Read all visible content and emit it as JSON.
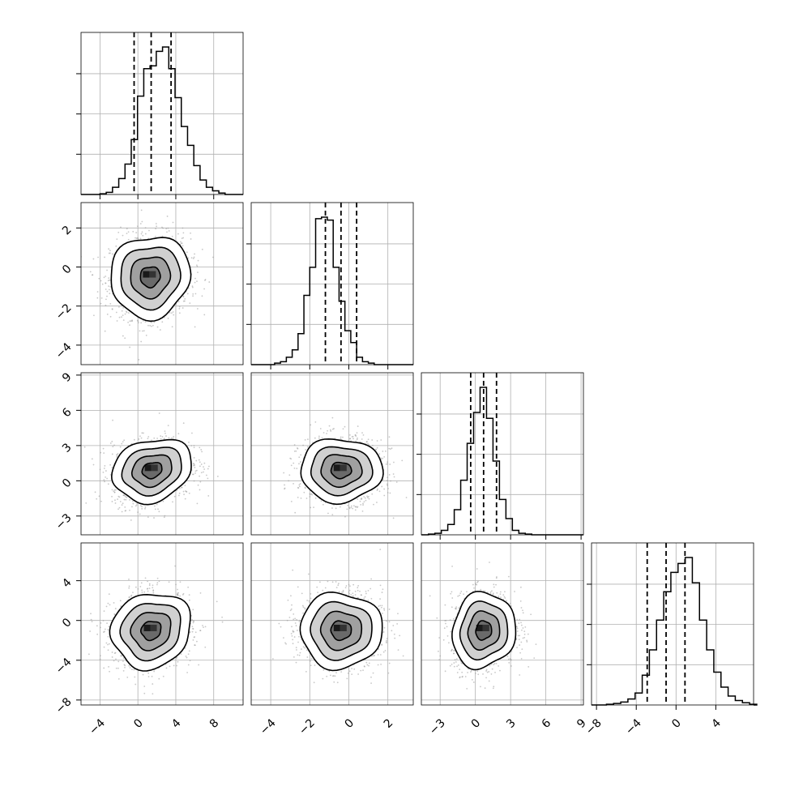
{
  "chart_data": {
    "type": "corner",
    "description_of_panels": "lower-triangle 2D density panels and diagonal 1D histograms with dashed quantile lines",
    "params": [
      {
        "ticks": [
          -4,
          0,
          4,
          8
        ],
        "tick_labels": [
          "−4",
          "0",
          "4",
          "8"
        ],
        "range": [
          -6,
          11.1
        ],
        "quantiles": [
          -0.4,
          1.4,
          3.5
        ],
        "hist": {
          "edges_start": -4.0,
          "bin_width": 0.66,
          "counts": [
            0.5,
            1.5,
            5,
            11,
            21,
            38,
            68,
            87,
            89,
            99,
            102,
            87,
            67,
            47,
            34,
            20,
            10,
            5,
            2.5,
            1
          ]
        }
      },
      {
        "ticks": [
          -4,
          -2,
          0,
          2
        ],
        "tick_labels": [
          "−4",
          "−2",
          "0",
          "2"
        ],
        "range": [
          -5,
          3.3
        ],
        "quantiles": [
          -1.2,
          -0.4,
          0.4
        ],
        "hist": {
          "edges_start": -3.8,
          "bin_width": 0.3,
          "counts": [
            1,
            2,
            5,
            10,
            21,
            47,
            66,
            99,
            100,
            98,
            66,
            43,
            23,
            15,
            5,
            2,
            1
          ]
        }
      },
      {
        "ticks": [
          -3,
          0,
          3,
          6,
          9
        ],
        "tick_labels": [
          "−3",
          "0",
          "3",
          "6",
          "9"
        ],
        "range": [
          -4.6,
          9.2
        ],
        "quantiles": [
          -0.4,
          0.7,
          1.8
        ],
        "hist": {
          "edges_start": -4.0,
          "bin_width": 0.55,
          "counts": [
            0.5,
            1,
            3,
            7,
            17,
            37,
            62,
            83,
            100,
            79,
            50,
            24,
            11,
            3,
            1,
            0.5
          ]
        }
      },
      {
        "ticks": [
          -8,
          -4,
          0,
          4
        ],
        "tick_labels": [
          "−8",
          "−4",
          "0",
          "4"
        ],
        "range": [
          -8.5,
          7.8
        ],
        "quantiles": [
          -2.9,
          -1.0,
          0.9
        ],
        "hist": {
          "edges_start": -7.0,
          "bin_width": 0.72,
          "counts": [
            0.5,
            1,
            2,
            4,
            8,
            20,
            37,
            57,
            76,
            89,
            95,
            99,
            82,
            57,
            37,
            22,
            12,
            6,
            3,
            1.5,
            0.5
          ]
        }
      }
    ],
    "pairs": [
      {
        "row": 1,
        "col": 0,
        "center": [
          1.3,
          -0.5
        ],
        "sd": [
          2.1,
          1.05
        ],
        "rho": 0.05
      },
      {
        "row": 2,
        "col": 0,
        "center": [
          1.5,
          0.9
        ],
        "sd": [
          2.1,
          1.35
        ],
        "rho": 0.18
      },
      {
        "row": 2,
        "col": 1,
        "center": [
          -0.4,
          0.9
        ],
        "sd": [
          1.05,
          1.35
        ],
        "rho": 0.0
      },
      {
        "row": 3,
        "col": 0,
        "center": [
          1.4,
          -1.0
        ],
        "sd": [
          2.1,
          1.9
        ],
        "rho": 0.1
      },
      {
        "row": 3,
        "col": 1,
        "center": [
          -0.4,
          -1.0
        ],
        "sd": [
          1.05,
          1.9
        ],
        "rho": 0.0
      },
      {
        "row": 3,
        "col": 2,
        "center": [
          0.7,
          -1.0
        ],
        "sd": [
          1.35,
          1.9
        ],
        "rho": 0.08
      }
    ],
    "contour_sigma_levels": [
      0.5,
      1.0,
      1.5,
      2.0
    ],
    "grid": true,
    "colors": {
      "line": "#000000",
      "grid": "#b0b0b0",
      "points": "#9a9a9a"
    }
  }
}
